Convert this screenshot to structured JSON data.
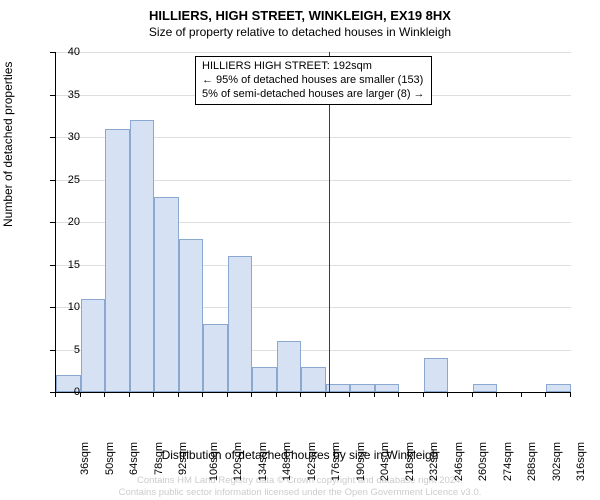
{
  "title": "HILLIERS, HIGH STREET, WINKLEIGH, EX19 8HX",
  "subtitle": "Size of property relative to detached houses in Winkleigh",
  "y_axis_label": "Number of detached properties",
  "x_axis_label": "Distribution of detached houses by size in Winkleigh",
  "chart": {
    "type": "histogram",
    "y_min": 0,
    "y_max": 40,
    "y_tick_step": 5,
    "y_ticks": [
      0,
      5,
      10,
      15,
      20,
      25,
      30,
      35,
      40
    ],
    "x_categories": [
      "36sqm",
      "50sqm",
      "64sqm",
      "78sqm",
      "92sqm",
      "106sqm",
      "120sqm",
      "134sqm",
      "148sqm",
      "162sqm",
      "176sqm",
      "190sqm",
      "204sqm",
      "218sqm",
      "232sqm",
      "246sqm",
      "260sqm",
      "274sqm",
      "288sqm",
      "302sqm",
      "316sqm"
    ],
    "values": [
      2,
      11,
      31,
      32,
      23,
      18,
      8,
      16,
      3,
      6,
      3,
      1,
      1,
      1,
      0,
      4,
      0,
      1,
      0,
      0,
      1
    ],
    "bar_fill": "#d6e2f3",
    "bar_border": "#8aa8d0",
    "grid_color": "#808080",
    "marker_color": "#cc0000",
    "marker_position_index": 11,
    "background": "#ffffff"
  },
  "annotation": {
    "line1": "HILLIERS HIGH STREET: 192sqm",
    "line2": "← 95% of detached houses are smaller (153)",
    "line3": "5% of semi-detached houses are larger (8) →"
  },
  "attribution": {
    "line1": "Contains HM Land Registry data © Crown copyright and database right 2024.",
    "line2": "Contains public sector information licensed under the Open Government Licence v3.0."
  }
}
